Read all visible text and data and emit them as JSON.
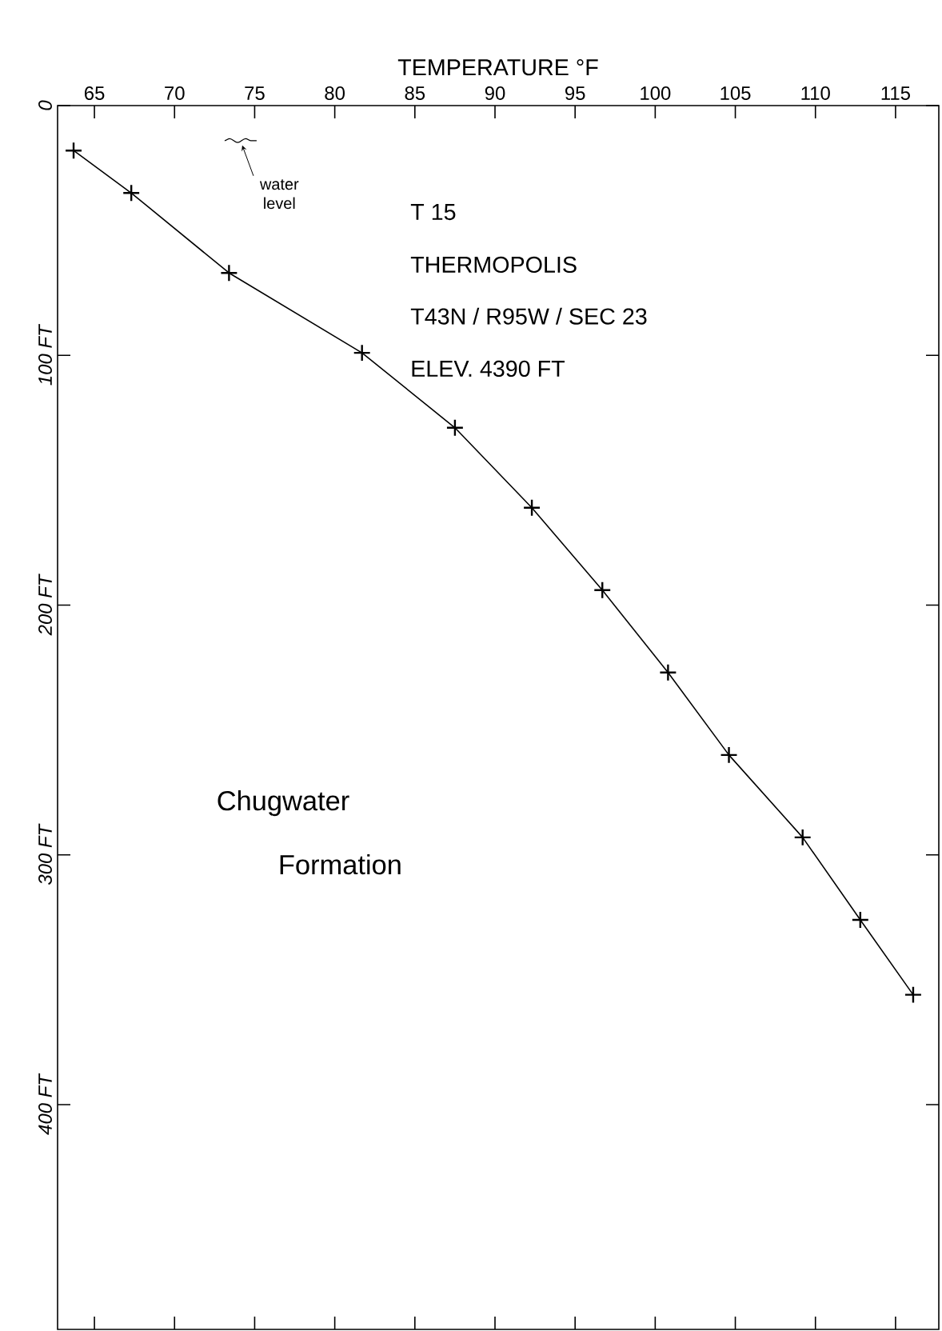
{
  "chart_data": {
    "type": "line",
    "xlabel": "TEMPERATURE °F",
    "series": [
      {
        "color": "#000000",
        "x": [
          63.7,
          67.3,
          73.4,
          81.7,
          87.5,
          92.3,
          96.7,
          100.8,
          104.6,
          109.2,
          112.8,
          116.1
        ],
        "values": [
          18,
          35,
          67,
          99,
          129,
          161,
          194,
          227,
          260,
          293,
          326,
          356
        ]
      }
    ],
    "xlim": [
      62.7,
      117.7
    ],
    "xticks": [
      65,
      70,
      75,
      80,
      85,
      90,
      95,
      100,
      105,
      110,
      115
    ],
    "ylim": [
      490,
      0
    ],
    "yticks": [
      0,
      {
        "value": 100,
        "label": "100 FT"
      },
      {
        "value": 200,
        "label": "200 FT"
      },
      {
        "value": 300,
        "label": "300 FT"
      },
      {
        "value": 400,
        "label": "400 FT"
      }
    ],
    "marker": "cross",
    "line_style": "solid",
    "annotations": [
      "water level",
      "T 15",
      "THERMOPOLIS",
      "T43N / R95W / SEC 23",
      "ELEV. 4390 FT",
      "Chugwater",
      "Formation"
    ]
  }
}
